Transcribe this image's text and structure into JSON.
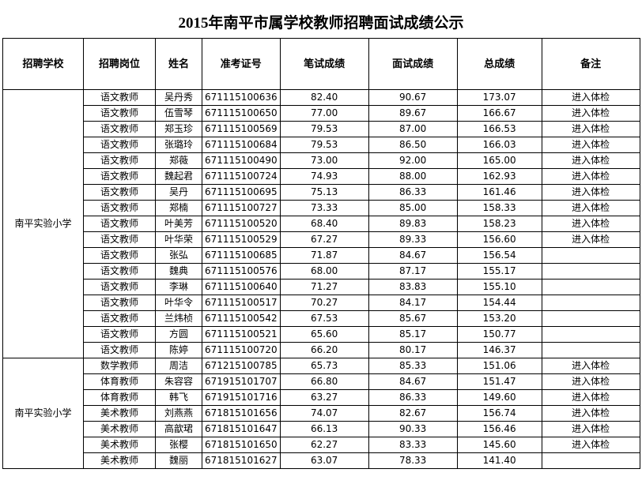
{
  "title": "2015年南平市属学校教师招聘面试成绩公示",
  "table": {
    "headers": [
      "招聘学校",
      "招聘岗位",
      "姓名",
      "准考证号",
      "笔试成绩",
      "面试成绩",
      "总成绩",
      "备注"
    ],
    "groups": [
      {
        "school": "南平实验小学",
        "rows": [
          [
            "语文教师",
            "吴丹秀",
            "671115100636",
            "82.40",
            "90.67",
            "173.07",
            "进入体检"
          ],
          [
            "语文教师",
            "伍雪琴",
            "671115100650",
            "77.00",
            "89.67",
            "166.67",
            "进入体检"
          ],
          [
            "语文教师",
            "郑玉珍",
            "671115100569",
            "79.53",
            "87.00",
            "166.53",
            "进入体检"
          ],
          [
            "语文教师",
            "张璐玲",
            "671115100684",
            "79.53",
            "86.50",
            "166.03",
            "进入体检"
          ],
          [
            "语文教师",
            "郑薇",
            "671115100490",
            "73.00",
            "92.00",
            "165.00",
            "进入体检"
          ],
          [
            "语文教师",
            "魏起君",
            "671115100724",
            "74.93",
            "88.00",
            "162.93",
            "进入体检"
          ],
          [
            "语文教师",
            "吴丹",
            "671115100695",
            "75.13",
            "86.33",
            "161.46",
            "进入体检"
          ],
          [
            "语文教师",
            "郑楠",
            "671115100727",
            "73.33",
            "85.00",
            "158.33",
            "进入体检"
          ],
          [
            "语文教师",
            "叶美芳",
            "671115100520",
            "68.40",
            "89.83",
            "158.23",
            "进入体检"
          ],
          [
            "语文教师",
            "叶华荣",
            "671115100529",
            "67.27",
            "89.33",
            "156.60",
            "进入体检"
          ],
          [
            "语文教师",
            "张弘",
            "671115100685",
            "71.87",
            "84.67",
            "156.54"
          ],
          [
            "语文教师",
            "魏典",
            "671115100576",
            "68.00",
            "87.17",
            "155.17"
          ],
          [
            "语文教师",
            "李琳",
            "671115100640",
            "71.27",
            "83.83",
            "155.10"
          ],
          [
            "语文教师",
            "叶华令",
            "671115100517",
            "70.27",
            "84.17",
            "154.44"
          ],
          [
            "语文教师",
            "兰炜桢",
            "671115100542",
            "67.53",
            "85.67",
            "153.20"
          ],
          [
            "语文教师",
            "方圆",
            "671115100521",
            "65.60",
            "85.17",
            "150.77"
          ],
          [
            "语文教师",
            "陈婷",
            "671115100720",
            "66.20",
            "80.17",
            "146.37"
          ]
        ]
      },
      {
        "school": "南平实验小学",
        "rows": [
          [
            "数学教师",
            "周洁",
            "671215100785",
            "65.73",
            "85.33",
            "151.06",
            "进入体检"
          ],
          [
            "体育教师",
            "朱容容",
            "671915101707",
            "66.80",
            "84.67",
            "151.47",
            "进入体检"
          ],
          [
            "体育教师",
            "韩飞",
            "671915101716",
            "63.27",
            "86.33",
            "149.60",
            "进入体检"
          ],
          [
            "美术教师",
            "刘燕燕",
            "671815101656",
            "74.07",
            "82.67",
            "156.74",
            "进入体检"
          ],
          [
            "美术教师",
            "高歆珺",
            "671815101647",
            "66.13",
            "90.33",
            "156.46",
            "进入体检"
          ],
          [
            "美术教师",
            "张樱",
            "671815101650",
            "62.27",
            "83.33",
            "145.60",
            "进入体检"
          ],
          [
            "美术教师",
            "魏丽",
            "671815101627",
            "63.07",
            "78.33",
            "141.40"
          ]
        ]
      }
    ]
  }
}
